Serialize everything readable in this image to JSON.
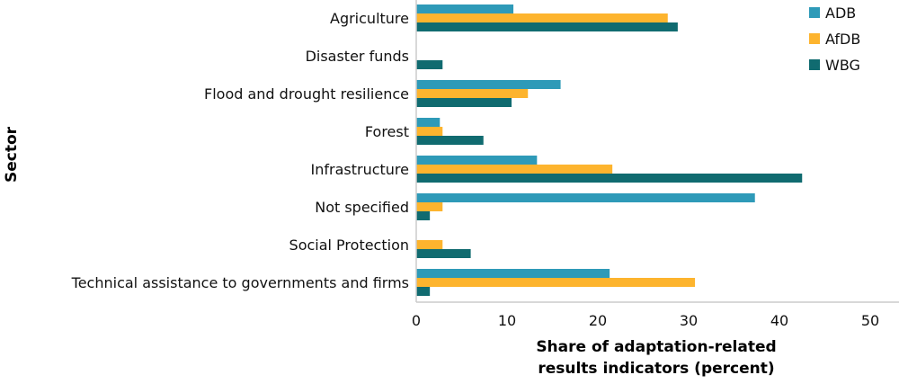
{
  "chart_data": {
    "type": "bar",
    "orientation": "horizontal",
    "categories": [
      "Agriculture",
      "Disaster funds",
      "Flood and drought resilience",
      "Forest",
      "Infrastructure",
      "Not specified",
      "Social Protection",
      "Technical assistance to governments and firms"
    ],
    "series": [
      {
        "name": "ADB",
        "color": "#2E9AB8",
        "values": [
          10.7,
          null,
          15.9,
          2.6,
          13.3,
          37.3,
          null,
          21.3
        ]
      },
      {
        "name": "AfDB",
        "color": "#FDB42E",
        "values": [
          27.7,
          null,
          12.3,
          2.9,
          21.6,
          2.9,
          2.9,
          30.7
        ]
      },
      {
        "name": "WBG",
        "color": "#106B70",
        "values": [
          28.8,
          2.9,
          10.5,
          7.4,
          42.5,
          1.5,
          6.0,
          1.5
        ]
      }
    ],
    "xlabel": [
      "Share of adaptation-related",
      "results indicators (percent)"
    ],
    "ylabel": "Sector",
    "xlim": [
      0,
      50
    ],
    "xticks": [
      "0",
      "10",
      "20",
      "30",
      "40",
      "50"
    ],
    "grid": false,
    "legend_placement": "top-right"
  }
}
